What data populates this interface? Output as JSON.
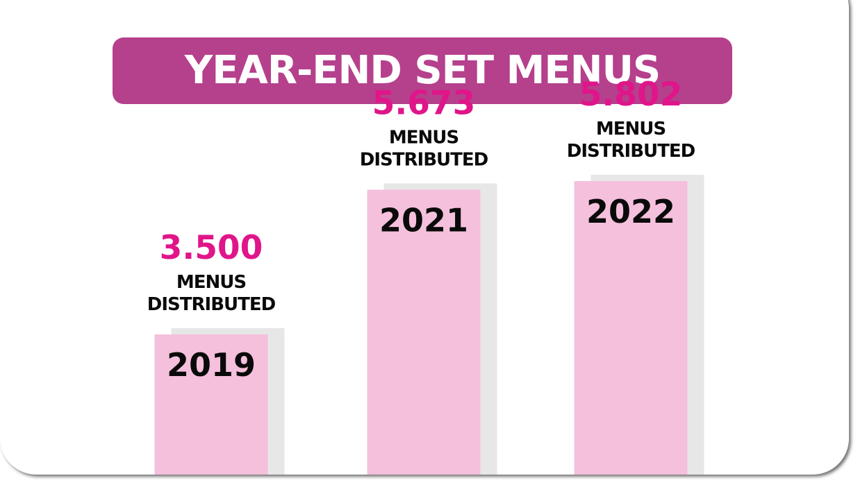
{
  "title": "YEAR-END SET MENUS",
  "chart_data": {
    "type": "bar",
    "title": "YEAR-END SET MENUS",
    "categories": [
      "2019",
      "2021",
      "2022"
    ],
    "values": [
      3.5,
      5.673,
      5.802
    ],
    "data_labels": [
      "3.500",
      "5.673",
      "5.802"
    ],
    "caption_lines": [
      "MENUS",
      "DISTRIBUTED"
    ],
    "xlabel": "",
    "ylabel": "",
    "grid": false,
    "legend": "none"
  },
  "colors": {
    "banner": "#b5408c",
    "bar": "#f5c0dc",
    "bar_shadow": "#e7e7e7",
    "value_text": "#e0158a",
    "label_text": "#0a0a0a"
  }
}
